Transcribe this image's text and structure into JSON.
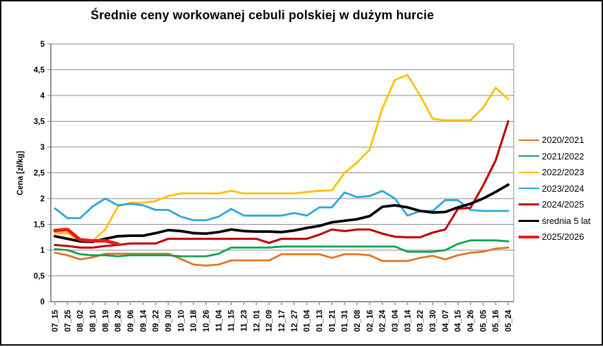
{
  "chart_data": {
    "type": "line",
    "title": "Średnie ceny workowanej cebuli polskiej w dużym hurcie",
    "xlabel": "",
    "ylabel": "Cena [zł/kg]",
    "ylim": [
      0,
      5
    ],
    "ytick_step": 0.5,
    "ytick_labels": [
      "0",
      "0,5",
      "1",
      "1,5",
      "2",
      "2,5",
      "3",
      "3,5",
      "4",
      "4,5",
      "5"
    ],
    "grid": "horizontal",
    "legend_position": "right",
    "categories": [
      "07_15",
      "07_25",
      "08_02",
      "08_10",
      "08_19",
      "08_29",
      "09_06",
      "09_14",
      "09_22",
      "09_30",
      "10_10",
      "10_18",
      "10_26",
      "11_04",
      "11_15",
      "11_23",
      "12_01",
      "12_09",
      "12_17",
      "12_27",
      "01_04",
      "01_13",
      "01_21",
      "01_31",
      "02_08",
      "02_16",
      "02_24",
      "03_04",
      "03_14",
      "03_22",
      "03_30",
      "04_07",
      "04_15",
      "04_26",
      "05_05",
      "05_16",
      "05_24"
    ],
    "series": [
      {
        "name": "2020/2021",
        "color": "#e0761f",
        "line_width": 2.8,
        "values": [
          0.95,
          0.9,
          0.82,
          0.86,
          0.93,
          0.93,
          0.93,
          0.93,
          0.93,
          0.93,
          0.83,
          0.72,
          0.7,
          0.72,
          0.8,
          0.8,
          0.8,
          0.8,
          0.92,
          0.92,
          0.92,
          0.92,
          0.85,
          0.92,
          0.92,
          0.9,
          0.79,
          0.79,
          0.79,
          0.85,
          0.89,
          0.82,
          0.9,
          0.95,
          0.97,
          1.03,
          1.05
        ]
      },
      {
        "name": "2021/2022",
        "color": "#0ca352",
        "line_width": 2.8,
        "values": [
          1.02,
          1.0,
          0.92,
          0.9,
          0.9,
          0.88,
          0.9,
          0.9,
          0.9,
          0.9,
          0.88,
          0.88,
          0.88,
          0.93,
          1.05,
          1.05,
          1.05,
          1.05,
          1.07,
          1.07,
          1.07,
          1.07,
          1.07,
          1.07,
          1.07,
          1.07,
          1.07,
          1.07,
          0.97,
          0.97,
          0.97,
          1.0,
          1.12,
          1.19,
          1.19,
          1.19,
          1.17
        ]
      },
      {
        "name": "2022/2023",
        "color": "#ffc000",
        "line_width": 2.8,
        "values": [
          1.33,
          1.33,
          1.18,
          1.18,
          1.4,
          1.85,
          1.92,
          1.92,
          1.95,
          2.05,
          2.1,
          2.1,
          2.1,
          2.1,
          2.15,
          2.1,
          2.1,
          2.1,
          2.1,
          2.1,
          2.13,
          2.15,
          2.16,
          2.5,
          2.7,
          2.95,
          3.75,
          4.3,
          4.4,
          4.0,
          3.55,
          3.52,
          3.52,
          3.52,
          3.76,
          4.15,
          3.93
        ]
      },
      {
        "name": "2023/2024",
        "color": "#2ba6de",
        "line_width": 2.8,
        "values": [
          1.81,
          1.62,
          1.62,
          1.85,
          2.0,
          1.87,
          1.9,
          1.87,
          1.78,
          1.78,
          1.65,
          1.58,
          1.58,
          1.65,
          1.8,
          1.67,
          1.67,
          1.67,
          1.67,
          1.72,
          1.67,
          1.83,
          1.83,
          2.12,
          2.03,
          2.05,
          2.15,
          2.0,
          1.67,
          1.76,
          1.76,
          1.97,
          1.97,
          1.78,
          1.76,
          1.76,
          1.76
        ]
      },
      {
        "name": "2024/2025",
        "color": "#c00000",
        "line_width": 3.1,
        "values": [
          1.1,
          1.08,
          1.05,
          1.05,
          1.08,
          1.1,
          1.13,
          1.13,
          1.13,
          1.22,
          1.22,
          1.22,
          1.22,
          1.22,
          1.22,
          1.22,
          1.22,
          1.14,
          1.22,
          1.22,
          1.22,
          1.3,
          1.4,
          1.37,
          1.4,
          1.4,
          1.32,
          1.26,
          1.25,
          1.25,
          1.34,
          1.4,
          1.8,
          1.82,
          2.25,
          2.74,
          3.5
        ]
      },
      {
        "name": "średnia 5 lat",
        "color": "#000000",
        "line_width": 3.8,
        "values": [
          1.27,
          1.22,
          1.17,
          1.16,
          1.22,
          1.27,
          1.28,
          1.28,
          1.33,
          1.39,
          1.37,
          1.33,
          1.32,
          1.35,
          1.4,
          1.37,
          1.36,
          1.36,
          1.35,
          1.38,
          1.43,
          1.47,
          1.54,
          1.57,
          1.6,
          1.66,
          1.84,
          1.87,
          1.83,
          1.76,
          1.73,
          1.74,
          1.83,
          1.9,
          2.0,
          2.13,
          2.27
        ]
      },
      {
        "name": "2025/2026",
        "color": "#f01818",
        "line_width": 5,
        "values": [
          1.38,
          1.4,
          1.2,
          1.18,
          1.18,
          1.12,
          null,
          null,
          null,
          null,
          null,
          null,
          null,
          null,
          null,
          null,
          null,
          null,
          null,
          null,
          null,
          null,
          null,
          null,
          null,
          null,
          null,
          null,
          null,
          null,
          null,
          null,
          null,
          null,
          null,
          null,
          null
        ]
      }
    ]
  }
}
